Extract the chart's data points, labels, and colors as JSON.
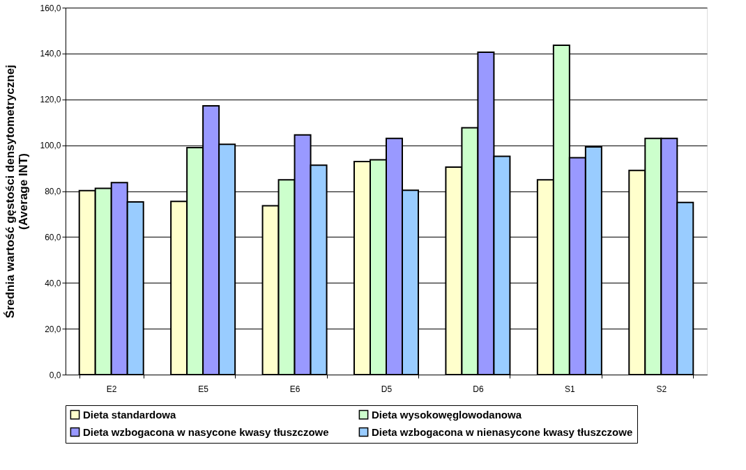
{
  "chart_data": {
    "type": "bar",
    "ylabel": "Średnia wartość gęstości densytometrycznej\n(Average INT)",
    "categories": [
      "E2",
      "E5",
      "E6",
      "D5",
      "D6",
      "S1",
      "S2"
    ],
    "series": [
      {
        "name": "Dieta standardowa",
        "color": "#ffffcc",
        "values": [
          80.2,
          75.5,
          73.6,
          92.9,
          90.5,
          84.9,
          89.0
        ]
      },
      {
        "name": "Dieta wysokowęglowodanowa",
        "color": "#ccffcc",
        "values": [
          81.2,
          99.0,
          84.9,
          93.7,
          107.6,
          143.6,
          103.0
        ]
      },
      {
        "name": "Dieta wzbogacona w nasycone kwasy tłuszczowe",
        "color": "#9999ff",
        "values": [
          83.7,
          117.2,
          104.5,
          103.0,
          140.6,
          94.6,
          103.0
        ]
      },
      {
        "name": "Dieta wzbogacona w nienasycone kwasy tłuszczowe",
        "color": "#99ccff",
        "values": [
          75.3,
          100.4,
          91.3,
          80.4,
          95.2,
          99.3,
          75.1
        ]
      }
    ],
    "ylim": [
      0,
      160
    ],
    "yticks": [
      {
        "value": 0,
        "label": "0,0"
      },
      {
        "value": 20,
        "label": "20,0"
      },
      {
        "value": 40,
        "label": "40,0"
      },
      {
        "value": 60,
        "label": "60,0"
      },
      {
        "value": 80,
        "label": "80,0"
      },
      {
        "value": 100,
        "label": "100,0"
      },
      {
        "value": 120,
        "label": "120,0"
      },
      {
        "value": 140,
        "label": "140,0"
      },
      {
        "value": 160,
        "label": "160,0"
      }
    ],
    "grid": "y",
    "legend": "bottom"
  }
}
